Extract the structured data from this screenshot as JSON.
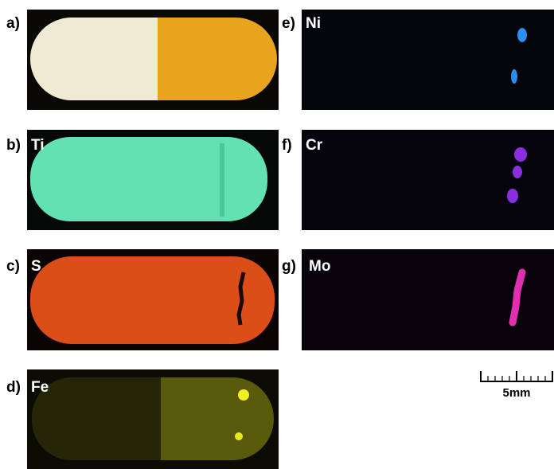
{
  "panels": [
    {
      "label": "a)"
    },
    {
      "label": "b)",
      "element": "Ti"
    },
    {
      "label": "c)",
      "element": "S"
    },
    {
      "label": "d)",
      "element": "Fe"
    },
    {
      "label": "e)",
      "element": "Ni"
    },
    {
      "label": "f)",
      "element": "Cr"
    },
    {
      "label": "g)",
      "element": "Mo"
    }
  ],
  "scale_bar": {
    "label": "5mm"
  }
}
